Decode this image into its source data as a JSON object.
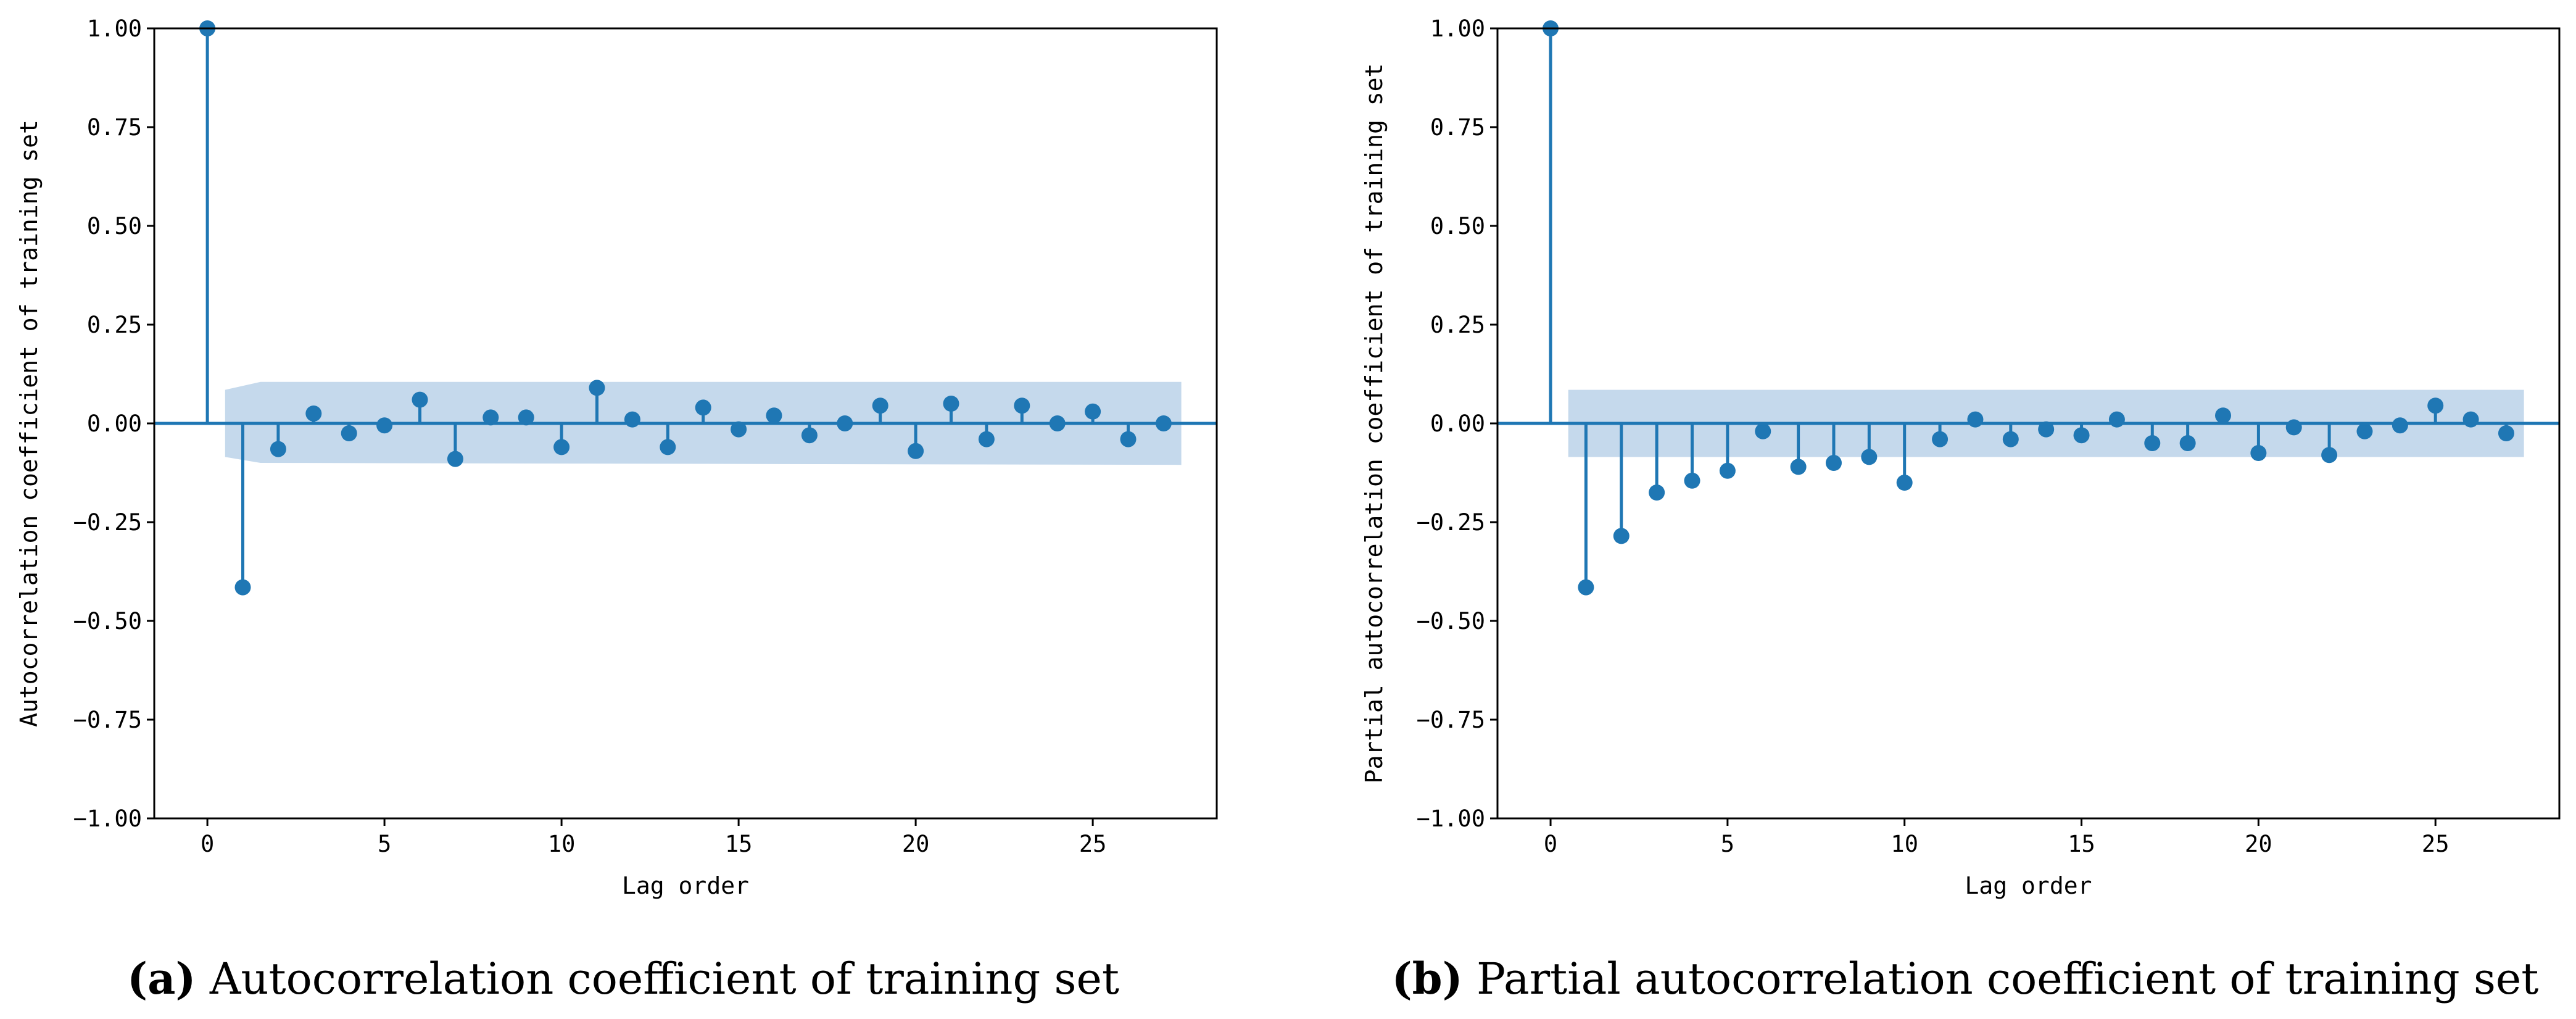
{
  "colors": {
    "stem": "#1f77b4",
    "band": "#c5d9ec",
    "axes": "#000000"
  },
  "chart_data": [
    {
      "type": "stem",
      "title": "",
      "xlabel": "Lag order",
      "ylabel": "Autocorrelation coefficient of training set",
      "caption_letter": "(a)",
      "caption_text": " Autocorrelation coefficient of training set",
      "xlim": [
        -1.5,
        28.5
      ],
      "ylim": [
        -1.0,
        1.0
      ],
      "xticks": [
        0,
        5,
        10,
        15,
        20,
        25
      ],
      "xtick_labels": [
        "0",
        "5",
        "10",
        "15",
        "20",
        "25"
      ],
      "yticks": [
        1.0,
        0.75,
        0.5,
        0.25,
        0.0,
        -0.25,
        -0.5,
        -0.75,
        -1.0
      ],
      "ytick_labels": [
        "1.00",
        "0.75",
        "0.50",
        "0.25",
        "0.00",
        "−0.25",
        "−0.50",
        "−0.75",
        "−1.00"
      ],
      "lags": [
        0,
        1,
        2,
        3,
        4,
        5,
        6,
        7,
        8,
        9,
        10,
        11,
        12,
        13,
        14,
        15,
        16,
        17,
        18,
        19,
        20,
        21,
        22,
        23,
        24,
        25,
        26,
        27
      ],
      "values": [
        1.0,
        -0.415,
        -0.065,
        0.025,
        -0.025,
        -0.005,
        0.06,
        -0.09,
        0.015,
        0.015,
        -0.06,
        0.09,
        0.01,
        -0.06,
        0.04,
        -0.015,
        0.02,
        -0.03,
        0.0,
        0.045,
        -0.07,
        0.05,
        -0.04,
        0.045,
        0.0,
        0.03,
        -0.04,
        0.0
      ],
      "confidence_band": {
        "x": [
          0.5,
          1.5,
          27.5
        ],
        "upper": [
          0.085,
          0.105,
          0.105
        ],
        "lower": [
          -0.085,
          -0.1,
          -0.105
        ]
      }
    },
    {
      "type": "stem",
      "title": "",
      "xlabel": "Lag order",
      "ylabel": "Partial autocorrelation coefficient of training set",
      "caption_letter": "(b)",
      "caption_text": " Partial autocorrelation coefficient of training set",
      "xlim": [
        -1.5,
        28.5
      ],
      "ylim": [
        -1.0,
        1.0
      ],
      "xticks": [
        0,
        5,
        10,
        15,
        20,
        25
      ],
      "xtick_labels": [
        "0",
        "5",
        "10",
        "15",
        "20",
        "25"
      ],
      "yticks": [
        1.0,
        0.75,
        0.5,
        0.25,
        0.0,
        -0.25,
        -0.5,
        -0.75,
        -1.0
      ],
      "ytick_labels": [
        "1.00",
        "0.75",
        "0.50",
        "0.25",
        "0.00",
        "−0.25",
        "−0.50",
        "−0.75",
        "−1.00"
      ],
      "lags": [
        0,
        1,
        2,
        3,
        4,
        5,
        6,
        7,
        8,
        9,
        10,
        11,
        12,
        13,
        14,
        15,
        16,
        17,
        18,
        19,
        20,
        21,
        22,
        23,
        24,
        25,
        26,
        27
      ],
      "values": [
        1.0,
        -0.415,
        -0.285,
        -0.175,
        -0.145,
        -0.12,
        -0.02,
        -0.11,
        -0.1,
        -0.085,
        -0.15,
        -0.04,
        0.01,
        -0.04,
        -0.015,
        -0.03,
        0.01,
        -0.05,
        -0.05,
        0.02,
        -0.075,
        -0.01,
        -0.08,
        -0.02,
        -0.005,
        0.045,
        0.01,
        -0.025
      ],
      "confidence_band": {
        "x": [
          0.5,
          27.5
        ],
        "upper": [
          0.085,
          0.085
        ],
        "lower": [
          -0.085,
          -0.085
        ]
      }
    }
  ]
}
